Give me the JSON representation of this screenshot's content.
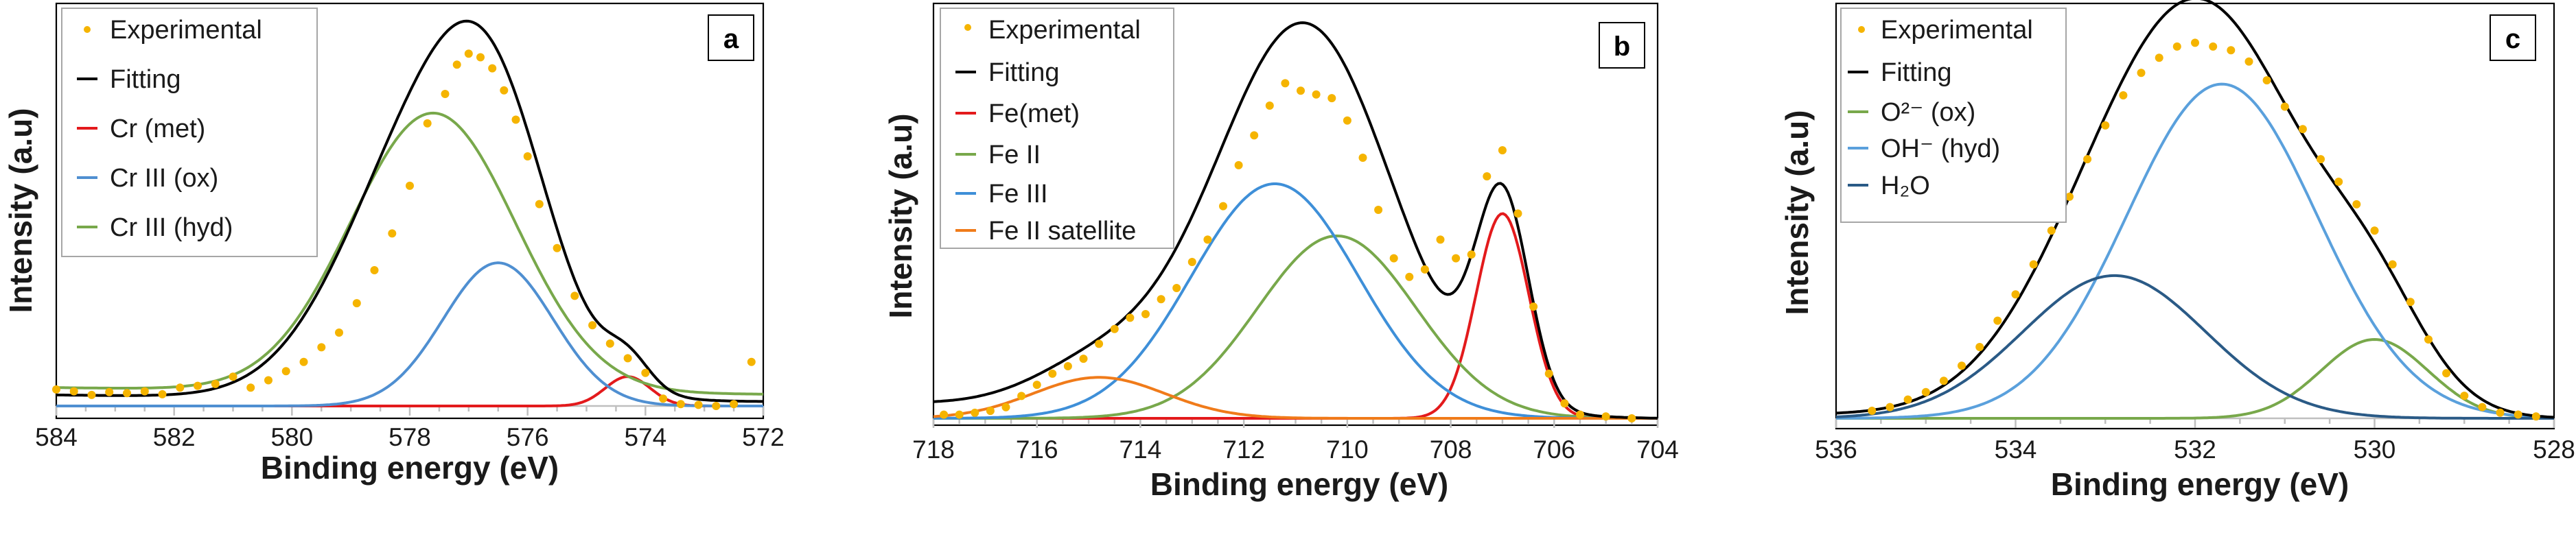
{
  "chart_data": [
    {
      "type": "scatter",
      "panel_label": "a",
      "xlabel": "Binding energy (eV)",
      "ylabel": "Intensity (a.u)",
      "xlim": [
        584,
        572
      ],
      "x_ticks": [
        584,
        582,
        580,
        578,
        576,
        574,
        572
      ],
      "ylim": [
        0,
        1.05
      ],
      "x_reversed": true,
      "legend_position": "top-left",
      "series": [
        {
          "name": "Experimental",
          "kind": "points",
          "color": "#f5b400"
        },
        {
          "name": "Fitting",
          "kind": "line",
          "color": "#000000"
        },
        {
          "name": "Cr (met)",
          "kind": "line",
          "color": "#e31a1c",
          "peak_center": 574.3,
          "height": 0.08,
          "fwhm": 0.9,
          "base": 0.0
        },
        {
          "name": "Cr III (ox)",
          "kind": "line",
          "color": "#4f8fd1",
          "peak_center": 576.5,
          "height": 0.39,
          "fwhm": 2.2,
          "base": 0.0
        },
        {
          "name": "Cr III (hyd)",
          "kind": "line",
          "color": "#78a84b",
          "peak_center": 577.6,
          "height": 0.76,
          "fwhm": 3.3,
          "base": 0.02
        }
      ],
      "background": [
        [
          584,
          0.03
        ],
        [
          576,
          0.015
        ],
        [
          572,
          0.012
        ]
      ],
      "experimental_points": [
        [
          584.0,
          0.045
        ],
        [
          583.7,
          0.04
        ],
        [
          583.4,
          0.03
        ],
        [
          583.1,
          0.038
        ],
        [
          582.8,
          0.035
        ],
        [
          582.5,
          0.04
        ],
        [
          582.2,
          0.032
        ],
        [
          581.9,
          0.05
        ],
        [
          581.6,
          0.055
        ],
        [
          581.3,
          0.06
        ],
        [
          581.0,
          0.08
        ],
        [
          580.7,
          0.05
        ],
        [
          580.4,
          0.07
        ],
        [
          580.1,
          0.095
        ],
        [
          579.8,
          0.12
        ],
        [
          579.5,
          0.16
        ],
        [
          579.2,
          0.2
        ],
        [
          578.9,
          0.28
        ],
        [
          578.6,
          0.37
        ],
        [
          578.3,
          0.47
        ],
        [
          578.0,
          0.6
        ],
        [
          577.7,
          0.77
        ],
        [
          577.4,
          0.85
        ],
        [
          577.2,
          0.93
        ],
        [
          577.0,
          0.96
        ],
        [
          576.8,
          0.95
        ],
        [
          576.6,
          0.92
        ],
        [
          576.4,
          0.86
        ],
        [
          576.2,
          0.78
        ],
        [
          576.0,
          0.68
        ],
        [
          575.8,
          0.55
        ],
        [
          575.5,
          0.43
        ],
        [
          575.2,
          0.3
        ],
        [
          574.9,
          0.22
        ],
        [
          574.6,
          0.17
        ],
        [
          574.3,
          0.13
        ],
        [
          574.0,
          0.09
        ],
        [
          573.7,
          0.02
        ],
        [
          573.4,
          0.005
        ],
        [
          573.1,
          0.003
        ],
        [
          572.8,
          0.0
        ],
        [
          572.5,
          0.005
        ],
        [
          572.2,
          0.12
        ]
      ]
    },
    {
      "type": "scatter",
      "panel_label": "b",
      "xlabel": "Binding energy (eV)",
      "ylabel": "Intensity (a.u)",
      "xlim": [
        718,
        704
      ],
      "x_ticks": [
        718,
        716,
        714,
        712,
        710,
        708,
        706,
        704
      ],
      "ylim": [
        0,
        1.05
      ],
      "x_reversed": true,
      "legend_position": "top-left",
      "series": [
        {
          "name": "Experimental",
          "kind": "points",
          "color": "#f5b400"
        },
        {
          "name": "Fitting",
          "kind": "line",
          "color": "#000000"
        },
        {
          "name": "Fe(met)",
          "kind": "line",
          "color": "#e31a1c",
          "peak_center": 707.0,
          "height": 0.55,
          "fwhm": 1.2,
          "base": 0.0
        },
        {
          "name": "Fe II",
          "kind": "line",
          "color": "#78a84b",
          "peak_center": 710.2,
          "height": 0.49,
          "fwhm": 3.6,
          "base": 0.0
        },
        {
          "name": "Fe III",
          "kind": "line",
          "color": "#3e8fd8",
          "peak_center": 711.4,
          "height": 0.63,
          "fwhm": 3.8,
          "base": 0.0
        },
        {
          "name": "Fe II satellite",
          "kind": "line",
          "color": "#f07b1a",
          "peak_center": 714.8,
          "height": 0.11,
          "fwhm": 3.0,
          "base": 0.0
        }
      ],
      "background": [
        [
          718,
          0.04
        ],
        [
          704,
          0.0
        ]
      ],
      "experimental_points": [
        [
          717.8,
          0.01
        ],
        [
          717.5,
          0.01
        ],
        [
          717.2,
          0.015
        ],
        [
          716.9,
          0.02
        ],
        [
          716.6,
          0.03
        ],
        [
          716.3,
          0.06
        ],
        [
          716.0,
          0.09
        ],
        [
          715.7,
          0.12
        ],
        [
          715.4,
          0.14
        ],
        [
          715.1,
          0.16
        ],
        [
          714.8,
          0.2
        ],
        [
          714.5,
          0.24
        ],
        [
          714.2,
          0.27
        ],
        [
          713.9,
          0.28
        ],
        [
          713.6,
          0.32
        ],
        [
          713.3,
          0.35
        ],
        [
          713.0,
          0.42
        ],
        [
          712.7,
          0.48
        ],
        [
          712.4,
          0.57
        ],
        [
          712.1,
          0.68
        ],
        [
          711.8,
          0.76
        ],
        [
          711.5,
          0.84
        ],
        [
          711.2,
          0.9
        ],
        [
          710.9,
          0.88
        ],
        [
          710.6,
          0.87
        ],
        [
          710.3,
          0.86
        ],
        [
          710.0,
          0.8
        ],
        [
          709.7,
          0.7
        ],
        [
          709.4,
          0.56
        ],
        [
          709.1,
          0.43
        ],
        [
          708.8,
          0.38
        ],
        [
          708.5,
          0.4
        ],
        [
          708.2,
          0.48
        ],
        [
          707.9,
          0.43
        ],
        [
          707.6,
          0.44
        ],
        [
          707.3,
          0.65
        ],
        [
          707.0,
          0.72
        ],
        [
          706.7,
          0.55
        ],
        [
          706.4,
          0.3
        ],
        [
          706.1,
          0.12
        ],
        [
          705.8,
          0.04
        ],
        [
          705.5,
          0.01
        ],
        [
          705.0,
          0.005
        ],
        [
          704.5,
          0.0
        ]
      ]
    },
    {
      "type": "scatter",
      "panel_label": "c",
      "xlabel": "Binding energy (eV)",
      "ylabel": "Intensity (a.u)",
      "xlim": [
        536,
        528
      ],
      "x_ticks": [
        536,
        534,
        532,
        530,
        528
      ],
      "ylim": [
        0,
        1.05
      ],
      "x_reversed": true,
      "legend_position": "top-left",
      "series": [
        {
          "name": "Experimental",
          "kind": "points",
          "color": "#f5b400"
        },
        {
          "name": "Fitting",
          "kind": "line",
          "color": "#000000"
        },
        {
          "name": "O²⁻ (ox)",
          "kind": "line",
          "color": "#78a84b",
          "peak_center": 530.0,
          "height": 0.21,
          "fwhm": 1.4,
          "base": 0.0
        },
        {
          "name": "OH⁻ (hyd)",
          "kind": "line",
          "color": "#5aa0dc",
          "peak_center": 531.7,
          "height": 0.89,
          "fwhm": 2.5,
          "base": 0.0
        },
        {
          "name": "H₂O",
          "kind": "line",
          "color": "#2a5a86",
          "peak_center": 532.9,
          "height": 0.38,
          "fwhm": 2.4,
          "base": 0.0
        }
      ],
      "background": [
        [
          536,
          0.01
        ],
        [
          528,
          0.0
        ]
      ],
      "experimental_points": [
        [
          535.6,
          0.02
        ],
        [
          535.4,
          0.03
        ],
        [
          535.2,
          0.05
        ],
        [
          535.0,
          0.07
        ],
        [
          534.8,
          0.1
        ],
        [
          534.6,
          0.14
        ],
        [
          534.4,
          0.19
        ],
        [
          534.2,
          0.26
        ],
        [
          534.0,
          0.33
        ],
        [
          533.8,
          0.41
        ],
        [
          533.6,
          0.5
        ],
        [
          533.4,
          0.59
        ],
        [
          533.2,
          0.69
        ],
        [
          533.0,
          0.78
        ],
        [
          532.8,
          0.86
        ],
        [
          532.6,
          0.92
        ],
        [
          532.4,
          0.96
        ],
        [
          532.2,
          0.99
        ],
        [
          532.0,
          1.0
        ],
        [
          531.8,
          0.99
        ],
        [
          531.6,
          0.98
        ],
        [
          531.4,
          0.95
        ],
        [
          531.2,
          0.9
        ],
        [
          531.0,
          0.83
        ],
        [
          530.8,
          0.77
        ],
        [
          530.6,
          0.69
        ],
        [
          530.4,
          0.63
        ],
        [
          530.2,
          0.57
        ],
        [
          530.0,
          0.5
        ],
        [
          529.8,
          0.41
        ],
        [
          529.6,
          0.31
        ],
        [
          529.4,
          0.21
        ],
        [
          529.2,
          0.12
        ],
        [
          529.0,
          0.06
        ],
        [
          528.8,
          0.03
        ],
        [
          528.6,
          0.015
        ],
        [
          528.4,
          0.01
        ],
        [
          528.2,
          0.005
        ]
      ]
    }
  ]
}
